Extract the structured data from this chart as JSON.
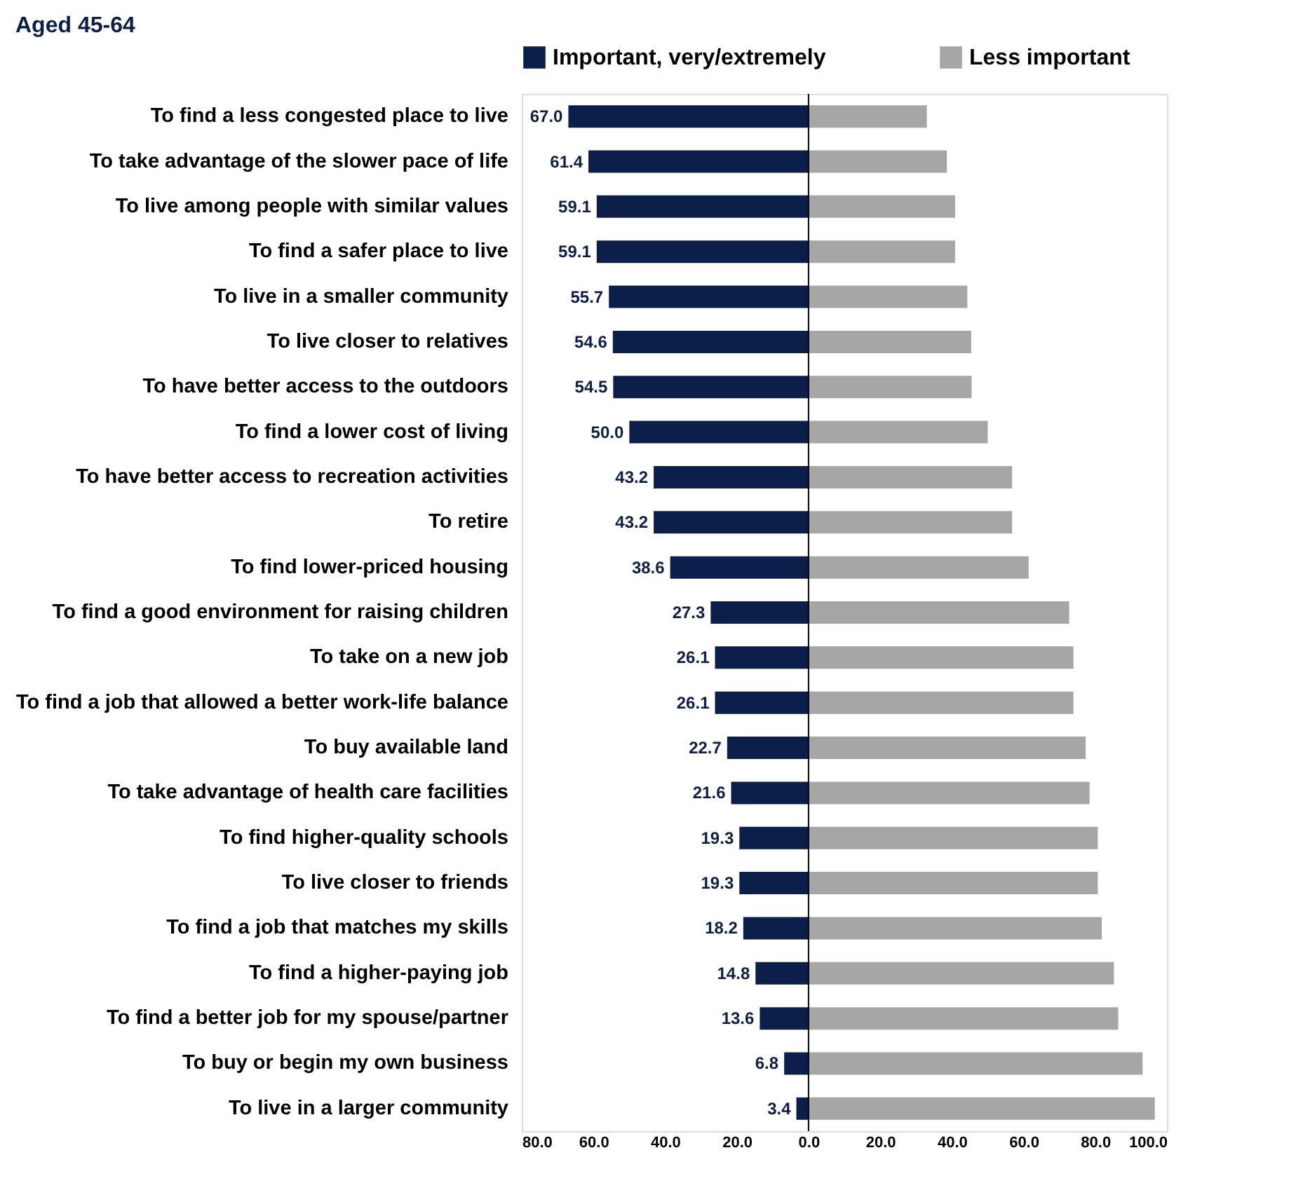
{
  "chart_data": {
    "type": "bar",
    "orientation": "horizontal",
    "title": "Aged 45-64",
    "legend": "top",
    "categories": [
      "To find a less congested place to live",
      "To take advantage of the slower pace of life",
      "To live among people with similar values",
      "To find a safer place to live",
      "To live in a smaller community",
      "To live closer to relatives",
      "To have better access to the outdoors",
      "To find a lower cost of living",
      "To have better access to recreation activities",
      "To retire",
      "To find lower-priced housing",
      "To find a good environment for raising children",
      "To take  on a new job",
      "To find a job that allowed a better work-life balance",
      "To buy available land",
      "To take advantage of health care facilities",
      "To find higher-quality schools",
      "To live closer to friends",
      "To find a job that matches my skills",
      "To find a higher-paying job",
      "To find a better job for my spouse/partner",
      "To buy or begin my own business",
      "To live in a larger community"
    ],
    "series": [
      {
        "name": "Important, very/extremely",
        "color": "#0c1f4a",
        "values": [
          67.0,
          61.4,
          59.1,
          59.1,
          55.7,
          54.6,
          54.5,
          50.0,
          43.2,
          43.2,
          38.6,
          27.3,
          26.1,
          26.1,
          22.7,
          21.6,
          19.3,
          19.3,
          18.2,
          14.8,
          13.6,
          6.8,
          3.4
        ],
        "base": [
          -67.0,
          -61.4,
          -59.1,
          -59.1,
          -55.7,
          -54.6,
          -54.5,
          -50.0,
          -43.2,
          -43.2,
          -38.6,
          -27.3,
          -26.1,
          -26.1,
          -22.7,
          -21.6,
          -19.3,
          -19.3,
          -18.2,
          -14.8,
          -13.6,
          -6.8,
          -3.4
        ],
        "value_labels": [
          "67.0",
          "61.4",
          "59.1",
          "59.1",
          "55.7",
          "54.6",
          "54.5",
          "50.0",
          "43.2",
          "43.2",
          "38.6",
          "27.3",
          "26.1",
          "26.1",
          "22.7",
          "21.6",
          "19.3",
          "19.3",
          "18.2",
          "14.8",
          "13.6",
          "6.8",
          "3.4"
        ]
      },
      {
        "name": "Less important",
        "color": "#a6a6a6",
        "values": [
          33.0,
          38.6,
          40.9,
          40.9,
          44.3,
          45.4,
          45.5,
          50.0,
          56.8,
          56.8,
          61.4,
          72.7,
          73.9,
          73.9,
          77.3,
          78.4,
          80.7,
          80.7,
          81.8,
          85.2,
          86.4,
          93.2,
          96.6
        ]
      }
    ],
    "xlim": [
      -80,
      100
    ],
    "xticks": [
      {
        "value": -80,
        "label": "80.0"
      },
      {
        "value": -60,
        "label": "60.0"
      },
      {
        "value": -40,
        "label": "40.0"
      },
      {
        "value": -20,
        "label": "20.0"
      },
      {
        "value": 0,
        "label": "0.0"
      },
      {
        "value": 20,
        "label": "20.0"
      },
      {
        "value": 40,
        "label": "40.0"
      },
      {
        "value": 60,
        "label": "60.0"
      },
      {
        "value": 80,
        "label": "80.0"
      },
      {
        "value": 100,
        "label": "100.0"
      }
    ],
    "ref_lines": [
      {
        "axis": "x",
        "value": 0,
        "color": "#000000"
      }
    ],
    "grid": false
  }
}
